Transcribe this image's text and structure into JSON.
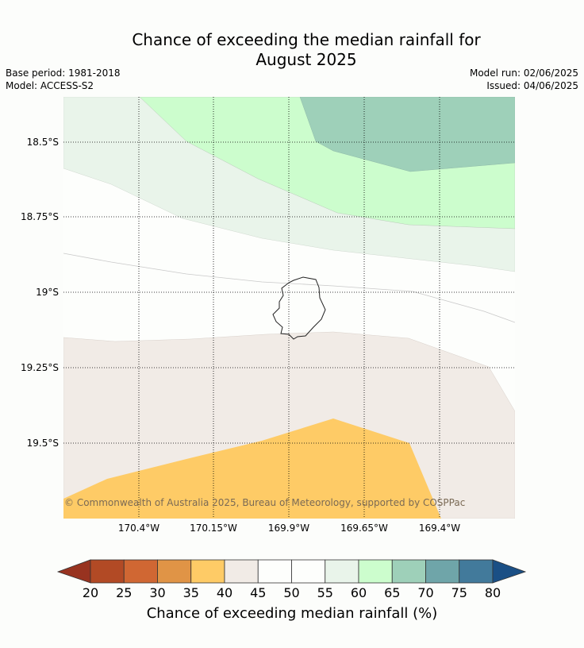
{
  "header": {
    "title_line1": "Chance of exceeding the median rainfall for",
    "title_line2": "August 2025",
    "base_period": "Base period: 1981-2018",
    "model": "Model: ACCESS-S2",
    "model_run": "Model run: 02/06/2025",
    "issued": "Issued: 04/06/2025"
  },
  "map": {
    "latitude_labels": [
      "18.5°S",
      "18.75°S",
      "19°S",
      "19.25°S",
      "19.5°S"
    ],
    "longitude_labels": [
      "170.4°W",
      "170.15°W",
      "169.9°W",
      "169.65°W",
      "169.4°W"
    ],
    "copyright": "© Commonwealth of Australia 2025, Bureau of Meteorology, supported by COSPPac",
    "colors": {
      "band_35_40": "#fecb66",
      "band_40_45": "#f1ebe6",
      "band_45_55": "#fdfefc",
      "band_55_60": "#e9f4ea",
      "band_60_65": "#ccfdcd",
      "band_65_70": "#9ed0b9"
    }
  },
  "colorbar": {
    "title": "Chance of exceeding median rainfall (%)",
    "ticks": [
      "20",
      "25",
      "30",
      "35",
      "40",
      "45",
      "50",
      "55",
      "60",
      "65",
      "70",
      "75",
      "80"
    ],
    "colors": [
      "#b24a25",
      "#d06733",
      "#e09446",
      "#fecb66",
      "#f1ebe6",
      "#fdfefc",
      "#fdfefc",
      "#e9f4ea",
      "#ccfdcd",
      "#9ed0b9",
      "#6fa5a9",
      "#427a9b"
    ],
    "under_color": "#983320",
    "over_color": "#1a4f85"
  }
}
